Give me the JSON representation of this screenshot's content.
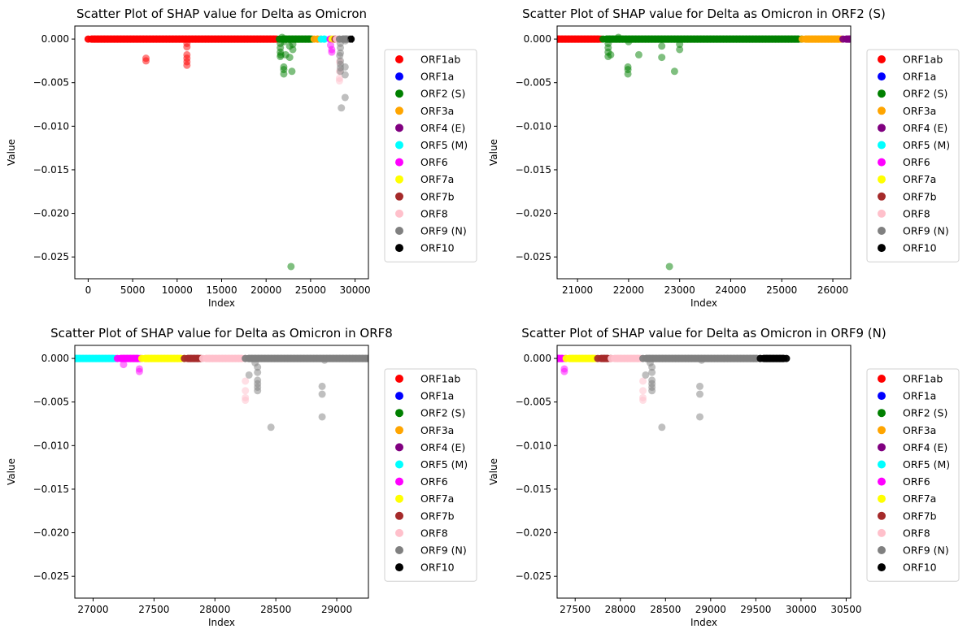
{
  "colors": {
    "ORF1ab": "#ff0000",
    "ORF1a": "#0000ff",
    "ORF2 (S)": "#008000",
    "ORF3a": "#ffa500",
    "ORF4 (E)": "#800080",
    "ORF5 (M)": "#00ffff",
    "ORF6": "#ff00ff",
    "ORF7a": "#ffff00",
    "ORF7b": "#a52a2a",
    "ORF8": "#ffc0cb",
    "ORF9 (N)": "#808080",
    "ORF10": "#000000"
  },
  "legend_entries": [
    "ORF1ab",
    "ORF1a",
    "ORF2 (S)",
    "ORF3a",
    "ORF4 (E)",
    "ORF5 (M)",
    "ORF6",
    "ORF7a",
    "ORF7b",
    "ORF8",
    "ORF9 (N)",
    "ORF10"
  ],
  "chart_data": [
    {
      "type": "scatter",
      "title": "Scatter Plot of SHAP value for Delta as Omicron",
      "xlabel": "Index",
      "ylabel": "Value",
      "xlim": [
        -1500,
        31500
      ],
      "ylim": [
        -0.0275,
        0.0015
      ],
      "xticks": [
        0,
        5000,
        10000,
        15000,
        20000,
        25000,
        30000
      ],
      "yticks": [
        0.0,
        -0.005,
        -0.01,
        -0.015,
        -0.02,
        -0.025
      ],
      "ytick_labels": [
        "0.000",
        "−0.005",
        "−0.010",
        "−0.015",
        "−0.020",
        "−0.025"
      ],
      "grid": false,
      "legend": "outside-right",
      "bands": [
        {
          "series": "ORF1ab",
          "from": 0,
          "to": 21500
        },
        {
          "series": "ORF2 (S)",
          "from": 21500,
          "to": 25400
        },
        {
          "series": "ORF3a",
          "from": 25400,
          "to": 26200
        },
        {
          "series": "ORF5 (M)",
          "from": 26200,
          "to": 26800
        },
        {
          "series": "ORF6",
          "from": 27200,
          "to": 27400
        },
        {
          "series": "ORF7a",
          "from": 27400,
          "to": 27750
        },
        {
          "series": "ORF7b",
          "from": 27750,
          "to": 27900
        },
        {
          "series": "ORF8",
          "from": 27900,
          "to": 28250
        },
        {
          "series": "ORF9 (N)",
          "from": 28250,
          "to": 29550
        },
        {
          "series": "ORF10",
          "from": 29550,
          "to": 29850
        }
      ],
      "points": [
        {
          "series": "ORF1ab",
          "x": 6500,
          "y": -0.0022
        },
        {
          "series": "ORF1ab",
          "x": 6500,
          "y": -0.0025
        },
        {
          "series": "ORF1ab",
          "x": 11100,
          "y": -0.0005
        },
        {
          "series": "ORF1ab",
          "x": 11100,
          "y": -0.0009
        },
        {
          "series": "ORF1ab",
          "x": 11100,
          "y": -0.0018
        },
        {
          "series": "ORF1ab",
          "x": 11100,
          "y": -0.0022
        },
        {
          "series": "ORF1ab",
          "x": 11100,
          "y": -0.0026
        },
        {
          "series": "ORF1ab",
          "x": 11100,
          "y": -0.003
        },
        {
          "series": "ORF2 (S)",
          "x": 21600,
          "y": -0.0005
        },
        {
          "series": "ORF2 (S)",
          "x": 21600,
          "y": -0.001
        },
        {
          "series": "ORF2 (S)",
          "x": 21600,
          "y": -0.0015
        },
        {
          "series": "ORF2 (S)",
          "x": 21600,
          "y": -0.002
        },
        {
          "series": "ORF2 (S)",
          "x": 21650,
          "y": -0.0018
        },
        {
          "series": "ORF2 (S)",
          "x": 21800,
          "y": 0.0002
        },
        {
          "series": "ORF2 (S)",
          "x": 21987,
          "y": -0.0032
        },
        {
          "series": "ORF2 (S)",
          "x": 21987,
          "y": -0.0035
        },
        {
          "series": "ORF2 (S)",
          "x": 21987,
          "y": -0.004
        },
        {
          "series": "ORF2 (S)",
          "x": 22000,
          "y": -0.0003
        },
        {
          "series": "ORF2 (S)",
          "x": 22200,
          "y": -0.0018
        },
        {
          "series": "ORF2 (S)",
          "x": 22650,
          "y": -0.0021
        },
        {
          "series": "ORF2 (S)",
          "x": 22650,
          "y": -0.0008
        },
        {
          "series": "ORF2 (S)",
          "x": 22800,
          "y": -0.0261
        },
        {
          "series": "ORF2 (S)",
          "x": 22900,
          "y": -0.0037
        },
        {
          "series": "ORF2 (S)",
          "x": 23000,
          "y": -0.0012
        },
        {
          "series": "ORF2 (S)",
          "x": 23000,
          "y": -0.0006
        },
        {
          "series": "ORF6",
          "x": 27250,
          "y": -0.0007
        },
        {
          "series": "ORF6",
          "x": 27380,
          "y": -0.0012
        },
        {
          "series": "ORF6",
          "x": 27380,
          "y": -0.0015
        },
        {
          "series": "ORF8",
          "x": 28250,
          "y": -0.0026
        },
        {
          "series": "ORF8",
          "x": 28250,
          "y": -0.0037
        },
        {
          "series": "ORF8",
          "x": 28250,
          "y": -0.0045
        },
        {
          "series": "ORF8",
          "x": 28250,
          "y": -0.0048
        },
        {
          "series": "ORF9 (N)",
          "x": 28280,
          "y": -0.0019
        },
        {
          "series": "ORF9 (N)",
          "x": 28350,
          "y": -0.001
        },
        {
          "series": "ORF9 (N)",
          "x": 28350,
          "y": -0.0016
        },
        {
          "series": "ORF9 (N)",
          "x": 28350,
          "y": -0.0025
        },
        {
          "series": "ORF9 (N)",
          "x": 28350,
          "y": -0.0029
        },
        {
          "series": "ORF9 (N)",
          "x": 28350,
          "y": -0.0033
        },
        {
          "series": "ORF9 (N)",
          "x": 28350,
          "y": -0.0037
        },
        {
          "series": "ORF9 (N)",
          "x": 28460,
          "y": -0.0079
        },
        {
          "series": "ORF9 (N)",
          "x": 28880,
          "y": -0.0032
        },
        {
          "series": "ORF9 (N)",
          "x": 28880,
          "y": -0.0041
        },
        {
          "series": "ORF9 (N)",
          "x": 28880,
          "y": -0.0067
        },
        {
          "series": "ORF9 (N)",
          "x": 28330,
          "y": -0.0005
        },
        {
          "series": "ORF9 (N)",
          "x": 28900,
          "y": -0.0002
        }
      ]
    },
    {
      "type": "scatter",
      "title": "Scatter Plot of SHAP value for Delta as Omicron in ORF2 (S)",
      "xlabel": "Index",
      "ylabel": "Value",
      "xlim": [
        20600,
        26350
      ],
      "ylim": [
        -0.0275,
        0.0015
      ],
      "xticks": [
        21000,
        22000,
        23000,
        24000,
        25000,
        26000
      ],
      "yticks": [
        0.0,
        -0.005,
        -0.01,
        -0.015,
        -0.02,
        -0.025
      ],
      "ytick_labels": [
        "0.000",
        "−0.005",
        "−0.010",
        "−0.015",
        "−0.020",
        "−0.025"
      ],
      "grid": false,
      "legend": "outside-right",
      "bands": [
        {
          "series": "ORF1ab",
          "from": 0,
          "to": 21500
        },
        {
          "series": "ORF2 (S)",
          "from": 21500,
          "to": 25400
        },
        {
          "series": "ORF3a",
          "from": 25400,
          "to": 26200
        },
        {
          "series": "ORF4 (E)",
          "from": 26200,
          "to": 26400
        }
      ],
      "points": []
    },
    {
      "type": "scatter",
      "title": "Scatter Plot of SHAP value for Delta as Omicron in ORF8",
      "xlabel": "Index",
      "ylabel": "Value",
      "xlim": [
        26850,
        29260
      ],
      "ylim": [
        -0.0275,
        0.0015
      ],
      "xticks": [
        27000,
        27500,
        28000,
        28500,
        29000
      ],
      "yticks": [
        0.0,
        -0.005,
        -0.01,
        -0.015,
        -0.02,
        -0.025
      ],
      "ytick_labels": [
        "0.000",
        "−0.005",
        "−0.010",
        "−0.015",
        "−0.020",
        "−0.025"
      ],
      "grid": false,
      "legend": "outside-right",
      "bands": [
        {
          "series": "ORF5 (M)",
          "from": 26500,
          "to": 27200
        },
        {
          "series": "ORF6",
          "from": 27200,
          "to": 27400
        },
        {
          "series": "ORF7a",
          "from": 27400,
          "to": 27750
        },
        {
          "series": "ORF7b",
          "from": 27750,
          "to": 27900
        },
        {
          "series": "ORF8",
          "from": 27900,
          "to": 28250
        },
        {
          "series": "ORF9 (N)",
          "from": 28250,
          "to": 29300
        }
      ],
      "points": []
    },
    {
      "type": "scatter",
      "title": "Scatter Plot of SHAP value for Delta as Omicron in ORF9 (N)",
      "xlabel": "Index",
      "ylabel": "Value",
      "xlim": [
        27300,
        30550
      ],
      "ylim": [
        -0.0275,
        0.0015
      ],
      "xticks": [
        27500,
        28000,
        28500,
        29000,
        29500,
        30000,
        30500
      ],
      "yticks": [
        0.0,
        -0.005,
        -0.01,
        -0.015,
        -0.02,
        -0.025
      ],
      "ytick_labels": [
        "0.000",
        "−0.005",
        "−0.010",
        "−0.015",
        "−0.020",
        "−0.025"
      ],
      "grid": false,
      "legend": "outside-right",
      "bands": [
        {
          "series": "ORF6",
          "from": 27200,
          "to": 27400
        },
        {
          "series": "ORF7a",
          "from": 27400,
          "to": 27750
        },
        {
          "series": "ORF7b",
          "from": 27750,
          "to": 27900
        },
        {
          "series": "ORF8",
          "from": 27900,
          "to": 28250
        },
        {
          "series": "ORF9 (N)",
          "from": 28250,
          "to": 29550
        },
        {
          "series": "ORF10",
          "from": 29550,
          "to": 29850
        }
      ],
      "points": []
    }
  ]
}
